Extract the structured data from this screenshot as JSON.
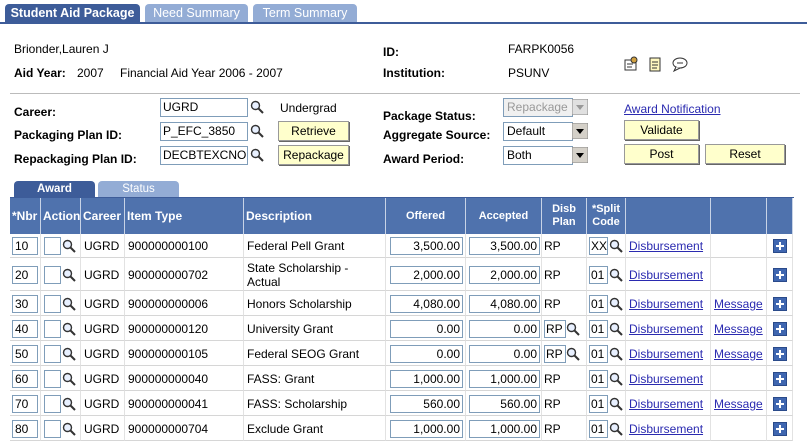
{
  "tabs": [
    "Student Aid Package",
    "Need Summary",
    "Term Summary"
  ],
  "header": {
    "name": "Brionder,Lauren J",
    "id_label": "ID:",
    "id": "FARPK0056",
    "aid_year_label": "Aid Year:",
    "aid_year": "2007",
    "aid_year_desc": "Financial Aid Year 2006 - 2007",
    "institution_label": "Institution:",
    "institution": "PSUNV"
  },
  "form": {
    "career_label": "Career:",
    "career": "UGRD",
    "career_desc": "Undergrad",
    "packaging_plan_label": "Packaging Plan ID:",
    "packaging_plan": "P_EFC_3850",
    "repackaging_plan_label": "Repackaging Plan ID:",
    "repackaging_plan": "DECBTEXCNO",
    "retrieve": "Retrieve",
    "repackage": "Repackage",
    "package_status_label": "Package Status:",
    "package_status": "Repackage",
    "aggregate_source_label": "Aggregate Source:",
    "aggregate_source": "Default",
    "award_period_label": "Award Period:",
    "award_period": "Both",
    "award_notification": "Award Notification",
    "validate": "Validate",
    "post": "Post",
    "reset": "Reset"
  },
  "grid_tabs": [
    "Award",
    "Status"
  ],
  "table": {
    "columns": [
      "*Nbr",
      "Action",
      "Career",
      "Item Type",
      "Description",
      "Offered",
      "Accepted",
      "Disb Plan",
      "*Split Code"
    ],
    "rows": [
      {
        "nbr": "10",
        "career": "UGRD",
        "item_type": "900000000100",
        "description": "Federal Pell Grant",
        "offered": "3,500.00",
        "accepted": "3,500.00",
        "disb_plan": "RP",
        "split_code": "XX",
        "disbursement": "Disbursement"
      },
      {
        "nbr": "20",
        "career": "UGRD",
        "item_type": "900000000702",
        "description": "State Scholarship - Actual",
        "offered": "2,000.00",
        "accepted": "2,000.00",
        "disb_plan": "RP",
        "split_code": "01",
        "disbursement": "Disbursement"
      },
      {
        "nbr": "30",
        "career": "UGRD",
        "item_type": "900000000006",
        "description": "Honors Scholarship",
        "offered": "4,080.00",
        "accepted": "4,080.00",
        "disb_plan": "RP",
        "split_code": "01",
        "disbursement": "Disbursement",
        "message": "Message"
      },
      {
        "nbr": "40",
        "career": "UGRD",
        "item_type": "900000000120",
        "description": "University Grant",
        "offered": "0.00",
        "accepted": "0.00",
        "disb_plan": "RP",
        "disb_plan_editable": true,
        "split_code": "01",
        "disbursement": "Disbursement",
        "message": "Message"
      },
      {
        "nbr": "50",
        "career": "UGRD",
        "item_type": "900000000105",
        "description": "Federal SEOG Grant",
        "offered": "0.00",
        "accepted": "0.00",
        "disb_plan": "RP",
        "disb_plan_editable": true,
        "split_code": "01",
        "disbursement": "Disbursement",
        "message": "Message"
      },
      {
        "nbr": "60",
        "career": "UGRD",
        "item_type": "900000000040",
        "description": "FASS:  Grant",
        "offered": "1,000.00",
        "accepted": "1,000.00",
        "disb_plan": "RP",
        "split_code": "01",
        "disbursement": "Disbursement"
      },
      {
        "nbr": "70",
        "career": "UGRD",
        "item_type": "900000000041",
        "description": "FASS:  Scholarship",
        "offered": "560.00",
        "accepted": "560.00",
        "disb_plan": "RP",
        "split_code": "01",
        "disbursement": "Disbursement",
        "message": "Message"
      },
      {
        "nbr": "80",
        "career": "UGRD",
        "item_type": "900000000704",
        "description": "Exclude Grant",
        "offered": "1,000.00",
        "accepted": "1,000.00",
        "disb_plan": "RP",
        "split_code": "01",
        "disbursement": "Disbursement"
      }
    ]
  }
}
